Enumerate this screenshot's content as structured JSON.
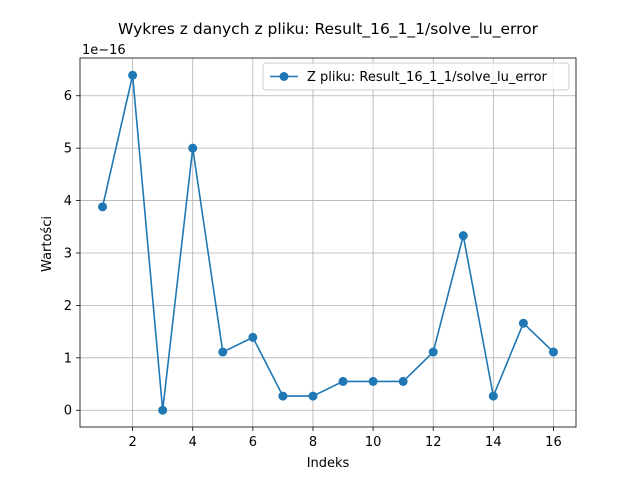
{
  "chart_data": {
    "type": "line",
    "title": "Wykres z danych z pliku: Result_16_1_1/solve_lu_error",
    "xlabel": "Indeks",
    "ylabel": "Wartości",
    "y_scale_label": "1e−16",
    "xlim": [
      0.25,
      16.75
    ],
    "ylim": [
      -0.32,
      6.72
    ],
    "x_ticks": [
      2,
      4,
      6,
      8,
      10,
      12,
      14,
      16
    ],
    "y_ticks": [
      0,
      1,
      2,
      3,
      4,
      5,
      6
    ],
    "grid": true,
    "legend_position": "top-right",
    "color": "#1f77b4",
    "series": [
      {
        "name": "Z pliku: Result_16_1_1/solve_lu_error",
        "x": [
          1,
          2,
          3,
          4,
          5,
          6,
          7,
          8,
          9,
          10,
          11,
          12,
          13,
          14,
          15,
          16
        ],
        "values": [
          3.88,
          6.39,
          0.0,
          5.0,
          1.11,
          1.39,
          0.27,
          0.27,
          0.55,
          0.55,
          0.55,
          1.11,
          3.33,
          0.27,
          1.66,
          1.11
        ]
      }
    ]
  }
}
